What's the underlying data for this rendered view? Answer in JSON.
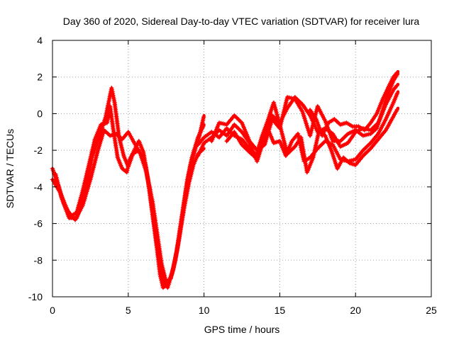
{
  "chart_data": {
    "type": "scatter",
    "title": "Day 360 of 2020, Sidereal Day-to-day VTEC variation (SDTVAR) for receiver lura",
    "xlabel": "GPS time / hours",
    "ylabel": "SDTVAR / TECUs",
    "xlim": [
      0,
      25
    ],
    "ylim": [
      -10,
      4
    ],
    "xticks": [
      0,
      5,
      10,
      15,
      20,
      25
    ],
    "yticks": [
      -10,
      -8,
      -6,
      -4,
      -2,
      0,
      2,
      4
    ],
    "xtick_labels": [
      "0",
      "5",
      "10",
      "15",
      "20",
      "25"
    ],
    "ytick_labels": [
      "-10",
      "-8",
      "-6",
      "-4",
      "-2",
      "0",
      "2",
      "4"
    ],
    "grid": true,
    "marker": "+",
    "color": "#ff0000",
    "series": [
      {
        "name": "track-1",
        "points": [
          [
            0.0,
            -3.0
          ],
          [
            0.4,
            -4.0
          ],
          [
            0.8,
            -5.0
          ],
          [
            1.2,
            -5.6
          ],
          [
            1.6,
            -5.4
          ],
          [
            2.0,
            -4.2
          ],
          [
            2.4,
            -2.8
          ],
          [
            2.8,
            -1.4
          ],
          [
            3.2,
            -0.6
          ],
          [
            3.6,
            -0.5
          ],
          [
            3.8,
            0.4
          ],
          [
            4.0,
            -0.8
          ],
          [
            4.3,
            -2.4
          ],
          [
            4.6,
            -3.0
          ],
          [
            4.9,
            -3.2
          ],
          [
            5.1,
            -2.5
          ],
          [
            5.4,
            -2.0
          ],
          [
            5.7,
            -1.5
          ],
          [
            6.0,
            -2.1
          ],
          [
            6.3,
            -3.6
          ],
          [
            6.6,
            -5.5
          ],
          [
            6.9,
            -7.4
          ],
          [
            7.1,
            -8.8
          ],
          [
            7.3,
            -9.5
          ],
          [
            7.6,
            -9.3
          ],
          [
            7.9,
            -8.7
          ],
          [
            8.2,
            -7.5
          ],
          [
            8.5,
            -5.8
          ],
          [
            8.8,
            -4.2
          ],
          [
            9.1,
            -2.9
          ],
          [
            9.4,
            -2.0
          ],
          [
            9.7,
            -1.2
          ],
          [
            10.0,
            -0.1
          ]
        ]
      },
      {
        "name": "track-2",
        "points": [
          [
            0.0,
            -3.6
          ],
          [
            0.5,
            -4.3
          ],
          [
            1.0,
            -5.3
          ],
          [
            1.5,
            -5.8
          ],
          [
            2.0,
            -5.0
          ],
          [
            2.5,
            -3.6
          ],
          [
            3.0,
            -2.0
          ],
          [
            3.4,
            -0.9
          ],
          [
            3.8,
            -1.2
          ],
          [
            4.2,
            -1.1
          ],
          [
            4.6,
            -1.4
          ],
          [
            5.0,
            -1.0
          ],
          [
            5.4,
            -1.6
          ],
          [
            5.8,
            -2.2
          ],
          [
            6.2,
            -3.2
          ],
          [
            6.6,
            -4.8
          ],
          [
            6.9,
            -6.5
          ],
          [
            7.2,
            -8.2
          ],
          [
            7.5,
            -9.2
          ],
          [
            7.8,
            -9.0
          ],
          [
            8.1,
            -8.0
          ],
          [
            8.4,
            -6.6
          ],
          [
            8.7,
            -5.1
          ],
          [
            9.0,
            -3.8
          ],
          [
            9.3,
            -2.8
          ],
          [
            9.6,
            -2.2
          ],
          [
            10.0,
            -1.9
          ]
        ]
      },
      {
        "name": "track-3",
        "points": [
          [
            0.2,
            -3.3
          ],
          [
            0.6,
            -4.6
          ],
          [
            1.1,
            -5.7
          ],
          [
            1.6,
            -5.7
          ],
          [
            2.1,
            -4.5
          ],
          [
            2.6,
            -2.4
          ],
          [
            3.1,
            -1.2
          ],
          [
            3.5,
            -0.2
          ],
          [
            3.9,
            1.4
          ],
          [
            4.1,
            0.6
          ],
          [
            4.4,
            -1.3
          ],
          [
            4.7,
            -2.3
          ],
          [
            5.0,
            -2.9
          ],
          [
            5.3,
            -2.2
          ],
          [
            5.7,
            -2.0
          ],
          [
            6.1,
            -2.7
          ],
          [
            6.4,
            -4.1
          ],
          [
            6.7,
            -6.0
          ],
          [
            7.0,
            -7.8
          ],
          [
            7.3,
            -9.1
          ],
          [
            7.6,
            -9.5
          ],
          [
            8.0,
            -8.4
          ],
          [
            8.3,
            -7.1
          ],
          [
            8.6,
            -5.4
          ],
          [
            8.9,
            -3.6
          ],
          [
            9.2,
            -2.4
          ],
          [
            9.6,
            -1.3
          ],
          [
            10.0,
            -0.6
          ]
        ]
      },
      {
        "name": "track-4",
        "points": [
          [
            9.6,
            -1.7
          ],
          [
            10.0,
            -1.3
          ],
          [
            10.5,
            -1.0
          ],
          [
            11.0,
            -1.3
          ],
          [
            11.5,
            -0.8
          ],
          [
            12.0,
            -1.2
          ],
          [
            12.5,
            -1.4
          ],
          [
            13.0,
            -1.9
          ],
          [
            13.5,
            -2.3
          ],
          [
            14.0,
            -1.0
          ],
          [
            14.5,
            -0.1
          ],
          [
            15.0,
            -0.5
          ],
          [
            15.5,
            0.3
          ],
          [
            16.0,
            0.9
          ],
          [
            16.5,
            0.5
          ],
          [
            17.0,
            -0.1
          ],
          [
            17.5,
            -1.0
          ],
          [
            18.0,
            -0.8
          ],
          [
            18.5,
            -1.1
          ],
          [
            19.0,
            -1.8
          ],
          [
            19.5,
            -1.6
          ],
          [
            20.0,
            -1.0
          ],
          [
            20.5,
            -0.8
          ],
          [
            21.0,
            -0.9
          ],
          [
            21.5,
            -0.5
          ],
          [
            22.0,
            0.5
          ],
          [
            22.5,
            1.3
          ],
          [
            22.8,
            1.6
          ]
        ]
      },
      {
        "name": "track-5",
        "points": [
          [
            9.6,
            -2.3
          ],
          [
            10.0,
            -1.6
          ],
          [
            10.5,
            -1.3
          ],
          [
            11.0,
            -0.9
          ],
          [
            11.5,
            -1.2
          ],
          [
            12.0,
            -0.6
          ],
          [
            12.5,
            -1.0
          ],
          [
            13.0,
            -1.6
          ],
          [
            13.5,
            -2.6
          ],
          [
            13.8,
            -1.8
          ],
          [
            14.2,
            -0.8
          ],
          [
            14.6,
            -1.6
          ],
          [
            15.0,
            -1.5
          ],
          [
            15.4,
            -2.3
          ],
          [
            15.8,
            -1.5
          ],
          [
            16.2,
            -1.1
          ],
          [
            16.6,
            -2.6
          ],
          [
            17.0,
            -2.4
          ],
          [
            17.5,
            -1.9
          ],
          [
            18.0,
            -1.5
          ],
          [
            18.5,
            -1.7
          ],
          [
            19.0,
            -2.5
          ],
          [
            19.5,
            -2.6
          ],
          [
            20.0,
            -2.5
          ],
          [
            20.5,
            -2.0
          ],
          [
            21.0,
            -1.6
          ],
          [
            21.5,
            -1.1
          ],
          [
            22.0,
            -0.3
          ],
          [
            22.5,
            0.6
          ],
          [
            22.8,
            1.2
          ]
        ]
      },
      {
        "name": "track-6",
        "points": [
          [
            10.5,
            -1.5
          ],
          [
            11.0,
            -0.5
          ],
          [
            11.5,
            -0.6
          ],
          [
            12.0,
            -0.1
          ],
          [
            12.5,
            -0.5
          ],
          [
            13.0,
            -1.5
          ],
          [
            13.5,
            -2.0
          ],
          [
            14.0,
            -1.7
          ],
          [
            14.5,
            -0.3
          ],
          [
            15.0,
            -0.8
          ],
          [
            15.5,
            0.9
          ],
          [
            16.0,
            0.8
          ],
          [
            16.5,
            0.1
          ],
          [
            17.0,
            -1.2
          ],
          [
            17.5,
            0.4
          ],
          [
            18.0,
            -0.4
          ],
          [
            18.5,
            -1.5
          ],
          [
            19.0,
            -1.5
          ],
          [
            19.5,
            -1.1
          ],
          [
            20.0,
            -0.9
          ],
          [
            20.5,
            -1.2
          ],
          [
            21.0,
            -1.1
          ],
          [
            21.4,
            -0.8
          ],
          [
            21.8,
            0.2
          ],
          [
            22.2,
            1.2
          ],
          [
            22.5,
            1.8
          ],
          [
            22.8,
            2.2
          ]
        ]
      },
      {
        "name": "track-7",
        "points": [
          [
            11.5,
            -1.5
          ],
          [
            12.0,
            -1.0
          ],
          [
            12.5,
            -1.7
          ],
          [
            13.0,
            -2.1
          ],
          [
            13.4,
            -2.4
          ],
          [
            13.8,
            -1.3
          ],
          [
            14.2,
            -0.4
          ],
          [
            14.6,
            0.6
          ],
          [
            15.0,
            -0.6
          ],
          [
            15.5,
            -2.2
          ],
          [
            16.0,
            -1.8
          ],
          [
            16.4,
            -1.3
          ],
          [
            16.8,
            -3.2
          ],
          [
            17.2,
            -2.4
          ],
          [
            17.6,
            -0.9
          ],
          [
            18.0,
            -1.2
          ],
          [
            18.4,
            -2.0
          ],
          [
            18.8,
            -3.0
          ],
          [
            19.2,
            -2.4
          ],
          [
            19.6,
            -2.7
          ],
          [
            20.0,
            -2.8
          ],
          [
            20.5,
            -2.3
          ],
          [
            21.0,
            -1.9
          ],
          [
            21.5,
            -1.4
          ],
          [
            22.0,
            -0.9
          ],
          [
            22.4,
            -0.3
          ],
          [
            22.8,
            0.3
          ]
        ]
      },
      {
        "name": "track-8",
        "points": [
          [
            17.0,
            0.2
          ],
          [
            17.4,
            -0.3
          ],
          [
            17.8,
            -1.2
          ],
          [
            18.2,
            -0.5
          ],
          [
            18.6,
            -0.3
          ],
          [
            19.0,
            -0.6
          ],
          [
            19.4,
            -0.5
          ],
          [
            19.8,
            -0.7
          ],
          [
            20.2,
            -0.7
          ],
          [
            20.6,
            -0.9
          ],
          [
            21.0,
            -0.5
          ],
          [
            21.4,
            0.0
          ],
          [
            21.8,
            0.8
          ],
          [
            22.2,
            1.5
          ],
          [
            22.5,
            2.0
          ],
          [
            22.8,
            2.3
          ]
        ]
      }
    ]
  }
}
